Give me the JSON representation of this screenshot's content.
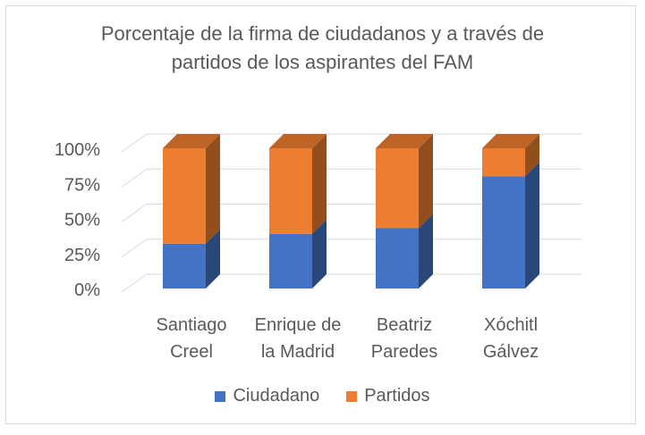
{
  "chart_data": {
    "type": "bar",
    "stacked": true,
    "three_d": true,
    "title": "Porcentaje de la firma de ciudadanos y a través de partidos de los aspirantes del FAM",
    "categories": [
      [
        "Santiago",
        "Creel"
      ],
      [
        "Enrique de",
        "la Madrid"
      ],
      [
        "Beatriz",
        "Paredes"
      ],
      [
        "Xóchitl",
        "Gálvez"
      ]
    ],
    "series": [
      {
        "name": "Ciudadano",
        "color": "#4472c4",
        "values": [
          32,
          39,
          43,
          80
        ]
      },
      {
        "name": "Partidos",
        "color": "#ed7d31",
        "values": [
          68,
          61,
          57,
          20
        ]
      }
    ],
    "ylim": [
      0,
      100
    ],
    "yticks": [
      "0%",
      "25%",
      "50%",
      "75%",
      "100%"
    ],
    "grid": true,
    "legend": "bottom"
  }
}
